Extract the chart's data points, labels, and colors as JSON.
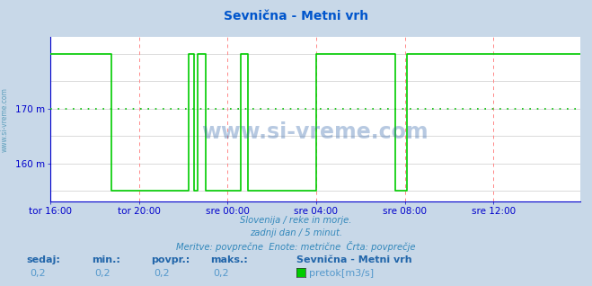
{
  "title": "Sevnična - Metni vrh",
  "title_color": "#0055cc",
  "bg_color": "#c8d8e8",
  "plot_bg_color": "#ffffff",
  "line_color": "#00cc00",
  "avg_line_color": "#00bb00",
  "avg_line_value": 170,
  "ylim": [
    153,
    183
  ],
  "xlim": [
    0,
    287
  ],
  "xtick_positions": [
    0,
    48,
    96,
    144,
    192,
    240
  ],
  "xtick_labels": [
    "tor 16:00",
    "tor 20:00",
    "sre 00:00",
    "sre 04:00",
    "sre 08:00",
    "sre 12:00"
  ],
  "vgrid_color": "#ff8888",
  "hgrid_color": "#cccccc",
  "axis_color": "#0000cc",
  "spine_color": "#0000cc",
  "footer_line1": "Slovenija / reke in morje.",
  "footer_line2": "zadnji dan / 5 minut.",
  "footer_line3": "Meritve: povprečne  Enote: metrične  Črta: povprečje",
  "footer_color": "#3388bb",
  "stat_labels": [
    "sedaj:",
    "min.:",
    "povpr.:",
    "maks.:"
  ],
  "stat_values": [
    "0,2",
    "0,2",
    "0,2",
    "0,2"
  ],
  "legend_label": "pretok[m3/s]",
  "legend_station": "Sevnična - Metni vrh",
  "stat_label_color": "#2266aa",
  "stat_value_color": "#5599cc",
  "watermark": "www.si-vreme.com",
  "watermark_color": "#3366aa",
  "sidebar_text": "www.si-vreme.com",
  "sidebar_color": "#3388aa",
  "flow_high": 180,
  "flow_low": 155,
  "flow_data": [
    180,
    180,
    180,
    180,
    180,
    180,
    180,
    180,
    180,
    180,
    180,
    180,
    180,
    180,
    180,
    180,
    180,
    180,
    180,
    180,
    180,
    180,
    180,
    180,
    180,
    180,
    180,
    180,
    180,
    180,
    180,
    180,
    180,
    155,
    155,
    155,
    155,
    155,
    155,
    155,
    155,
    155,
    155,
    155,
    155,
    155,
    155,
    155,
    155,
    155,
    155,
    155,
    155,
    155,
    155,
    155,
    155,
    155,
    155,
    155,
    155,
    155,
    155,
    155,
    155,
    155,
    155,
    155,
    155,
    155,
    155,
    155,
    155,
    155,
    155,
    180,
    180,
    180,
    155,
    155,
    180,
    180,
    180,
    180,
    155,
    155,
    155,
    155,
    155,
    155,
    155,
    155,
    155,
    155,
    155,
    155,
    155,
    155,
    155,
    155,
    155,
    155,
    155,
    180,
    180,
    180,
    180,
    155,
    155,
    155,
    155,
    155,
    155,
    155,
    155,
    155,
    155,
    155,
    155,
    155,
    155,
    155,
    155,
    155,
    155,
    155,
    155,
    155,
    155,
    155,
    155,
    155,
    155,
    155,
    155,
    155,
    155,
    155,
    155,
    155,
    155,
    155,
    155,
    155,
    180,
    180,
    180,
    180,
    180,
    180,
    180,
    180,
    180,
    180,
    180,
    180,
    180,
    180,
    180,
    180,
    180,
    180,
    180,
    180,
    180,
    180,
    180,
    180,
    180,
    180,
    180,
    180,
    180,
    180,
    180,
    180,
    180,
    180,
    180,
    180,
    180,
    180,
    180,
    180,
    180,
    180,
    180,
    155,
    155,
    155,
    155,
    155,
    155,
    180,
    180,
    180,
    180,
    180,
    180,
    180,
    180,
    180,
    180,
    180,
    180,
    180,
    180,
    180,
    180,
    180,
    180,
    180,
    180,
    180,
    180,
    180,
    180,
    180,
    180,
    180,
    180,
    180,
    180,
    180,
    180,
    180,
    180,
    180,
    180,
    180,
    180,
    180,
    180,
    180,
    180,
    180,
    180,
    180,
    180,
    180,
    180,
    180,
    180,
    180,
    180,
    180,
    180,
    180,
    180,
    180,
    180,
    180,
    180,
    180,
    180,
    180,
    180,
    180,
    180,
    180,
    180,
    180,
    180,
    180,
    180,
    180,
    180,
    180,
    180,
    180,
    180,
    180,
    180,
    180,
    180,
    180,
    180,
    180,
    180,
    180,
    180,
    180,
    180,
    180,
    180,
    180,
    180,
    180
  ]
}
